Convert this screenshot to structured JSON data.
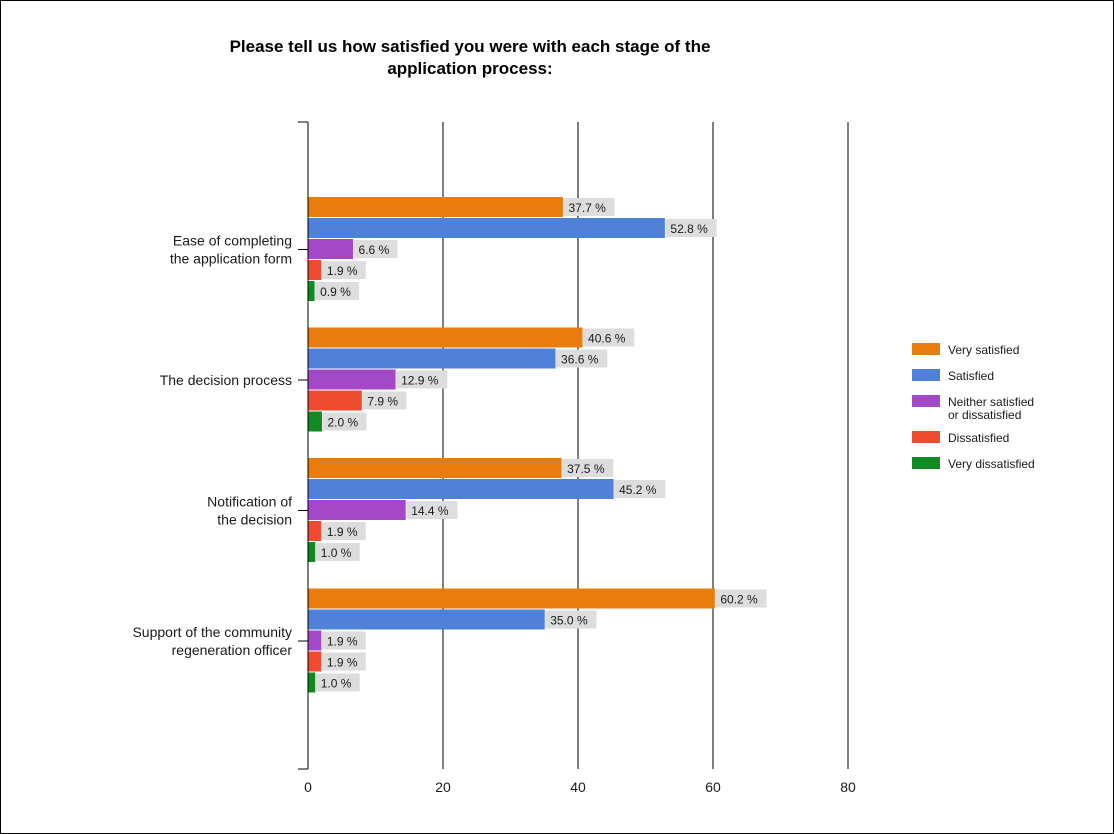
{
  "chart_data": {
    "type": "bar",
    "orientation": "horizontal",
    "title": "Please tell us how satisfied you were with each stage of the\napplication process:",
    "categories": [
      [
        "Ease of completing",
        "the application form"
      ],
      [
        "The decision process"
      ],
      [
        "Notification of",
        "the decision"
      ],
      [
        "Support of the community",
        "regeneration officer"
      ]
    ],
    "series": [
      {
        "name": "Very satisfied",
        "color": "#e87d0d",
        "values": [
          37.7,
          40.6,
          37.5,
          60.2
        ]
      },
      {
        "name": "Satisfied",
        "color": "#4f81d8",
        "values": [
          52.8,
          36.6,
          45.2,
          35.0
        ]
      },
      {
        "name": [
          "Neither satisfied",
          "or dissatisfied"
        ],
        "color": "#a349c8",
        "values": [
          6.6,
          12.9,
          14.4,
          1.9
        ]
      },
      {
        "name": "Dissatisfied",
        "color": "#ee4c31",
        "values": [
          1.9,
          7.9,
          1.9,
          1.9
        ]
      },
      {
        "name": "Very dissatisfied",
        "color": "#108a21",
        "values": [
          0.9,
          2.0,
          1.0,
          1.0
        ]
      }
    ],
    "label_suffix": " %",
    "xlim": [
      0,
      80
    ],
    "xticks": [
      0,
      20,
      40,
      60,
      80
    ],
    "grid": true,
    "legend_position": "right"
  }
}
